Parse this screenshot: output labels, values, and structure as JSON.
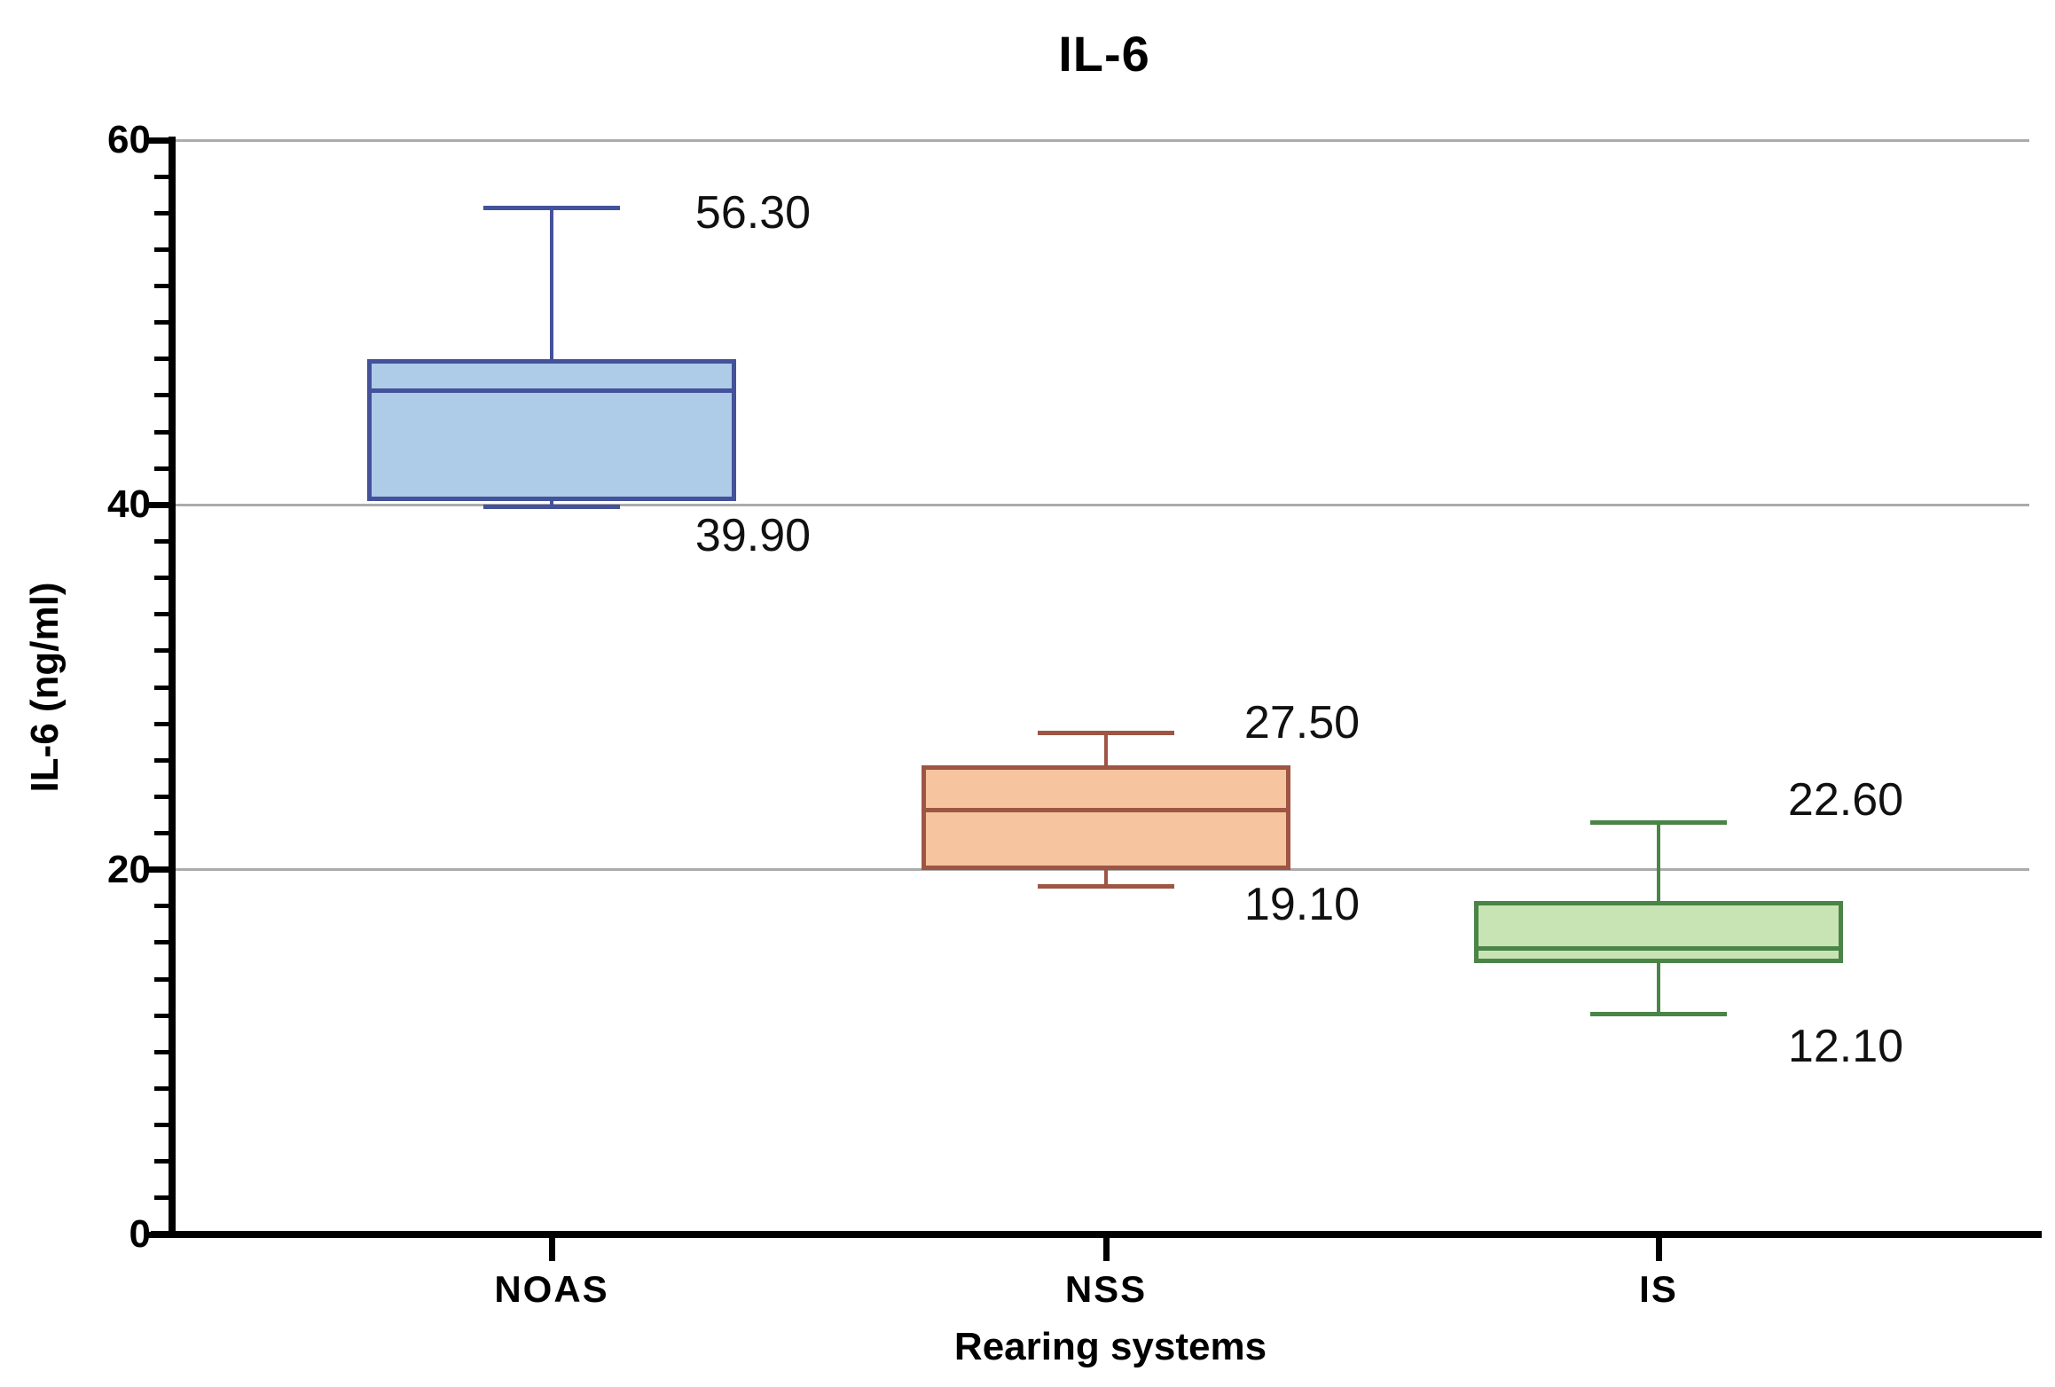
{
  "title": "IL-6",
  "axes": {
    "y": {
      "label": "IL-6 (ng/ml)",
      "min": 0,
      "max": 60,
      "major_ticks": [
        0,
        20,
        40,
        60
      ],
      "minor_step": 2,
      "gridlines_at": [
        20,
        40,
        60
      ]
    },
    "x": {
      "label": "Rearing systems",
      "categories": [
        "NOAS",
        "NSS",
        "IS"
      ]
    }
  },
  "colors": {
    "background": "#ffffff",
    "axis": "#000000",
    "gridline": "#ababab",
    "annotation_text": "#111111",
    "noas_fill": "#aecbe8",
    "noas_stroke": "#44519b",
    "nss_fill": "#f6c49e",
    "nss_stroke": "#9e5544",
    "is_fill": "#c8e4b4",
    "is_stroke": "#4a8447"
  },
  "chart_data": {
    "type": "boxplot",
    "title": "IL-6",
    "xlabel": "Rearing systems",
    "ylabel": "IL-6 (ng/ml)",
    "ylim": [
      0,
      60
    ],
    "grid": "horizontal-major",
    "legend": "none",
    "categories": [
      "NOAS",
      "NSS",
      "IS"
    ],
    "series": [
      {
        "name": "NOAS",
        "min": 39.9,
        "q1": 40.2,
        "median": 46.3,
        "q3": 48.0,
        "max": 56.3,
        "label_max": "56.30",
        "label_min": "39.90",
        "fill": "#aecbe8",
        "stroke": "#44519b"
      },
      {
        "name": "NSS",
        "min": 19.1,
        "q1": 20.0,
        "median": 23.3,
        "q3": 25.7,
        "max": 27.5,
        "label_max": "27.50",
        "label_min": "19.10",
        "fill": "#f6c49e",
        "stroke": "#9e5544"
      },
      {
        "name": "IS",
        "min": 12.1,
        "q1": 14.9,
        "median": 15.7,
        "q3": 18.3,
        "max": 22.6,
        "label_max": "22.60",
        "label_min": "12.10",
        "fill": "#c8e4b4",
        "stroke": "#4a8447"
      }
    ]
  }
}
